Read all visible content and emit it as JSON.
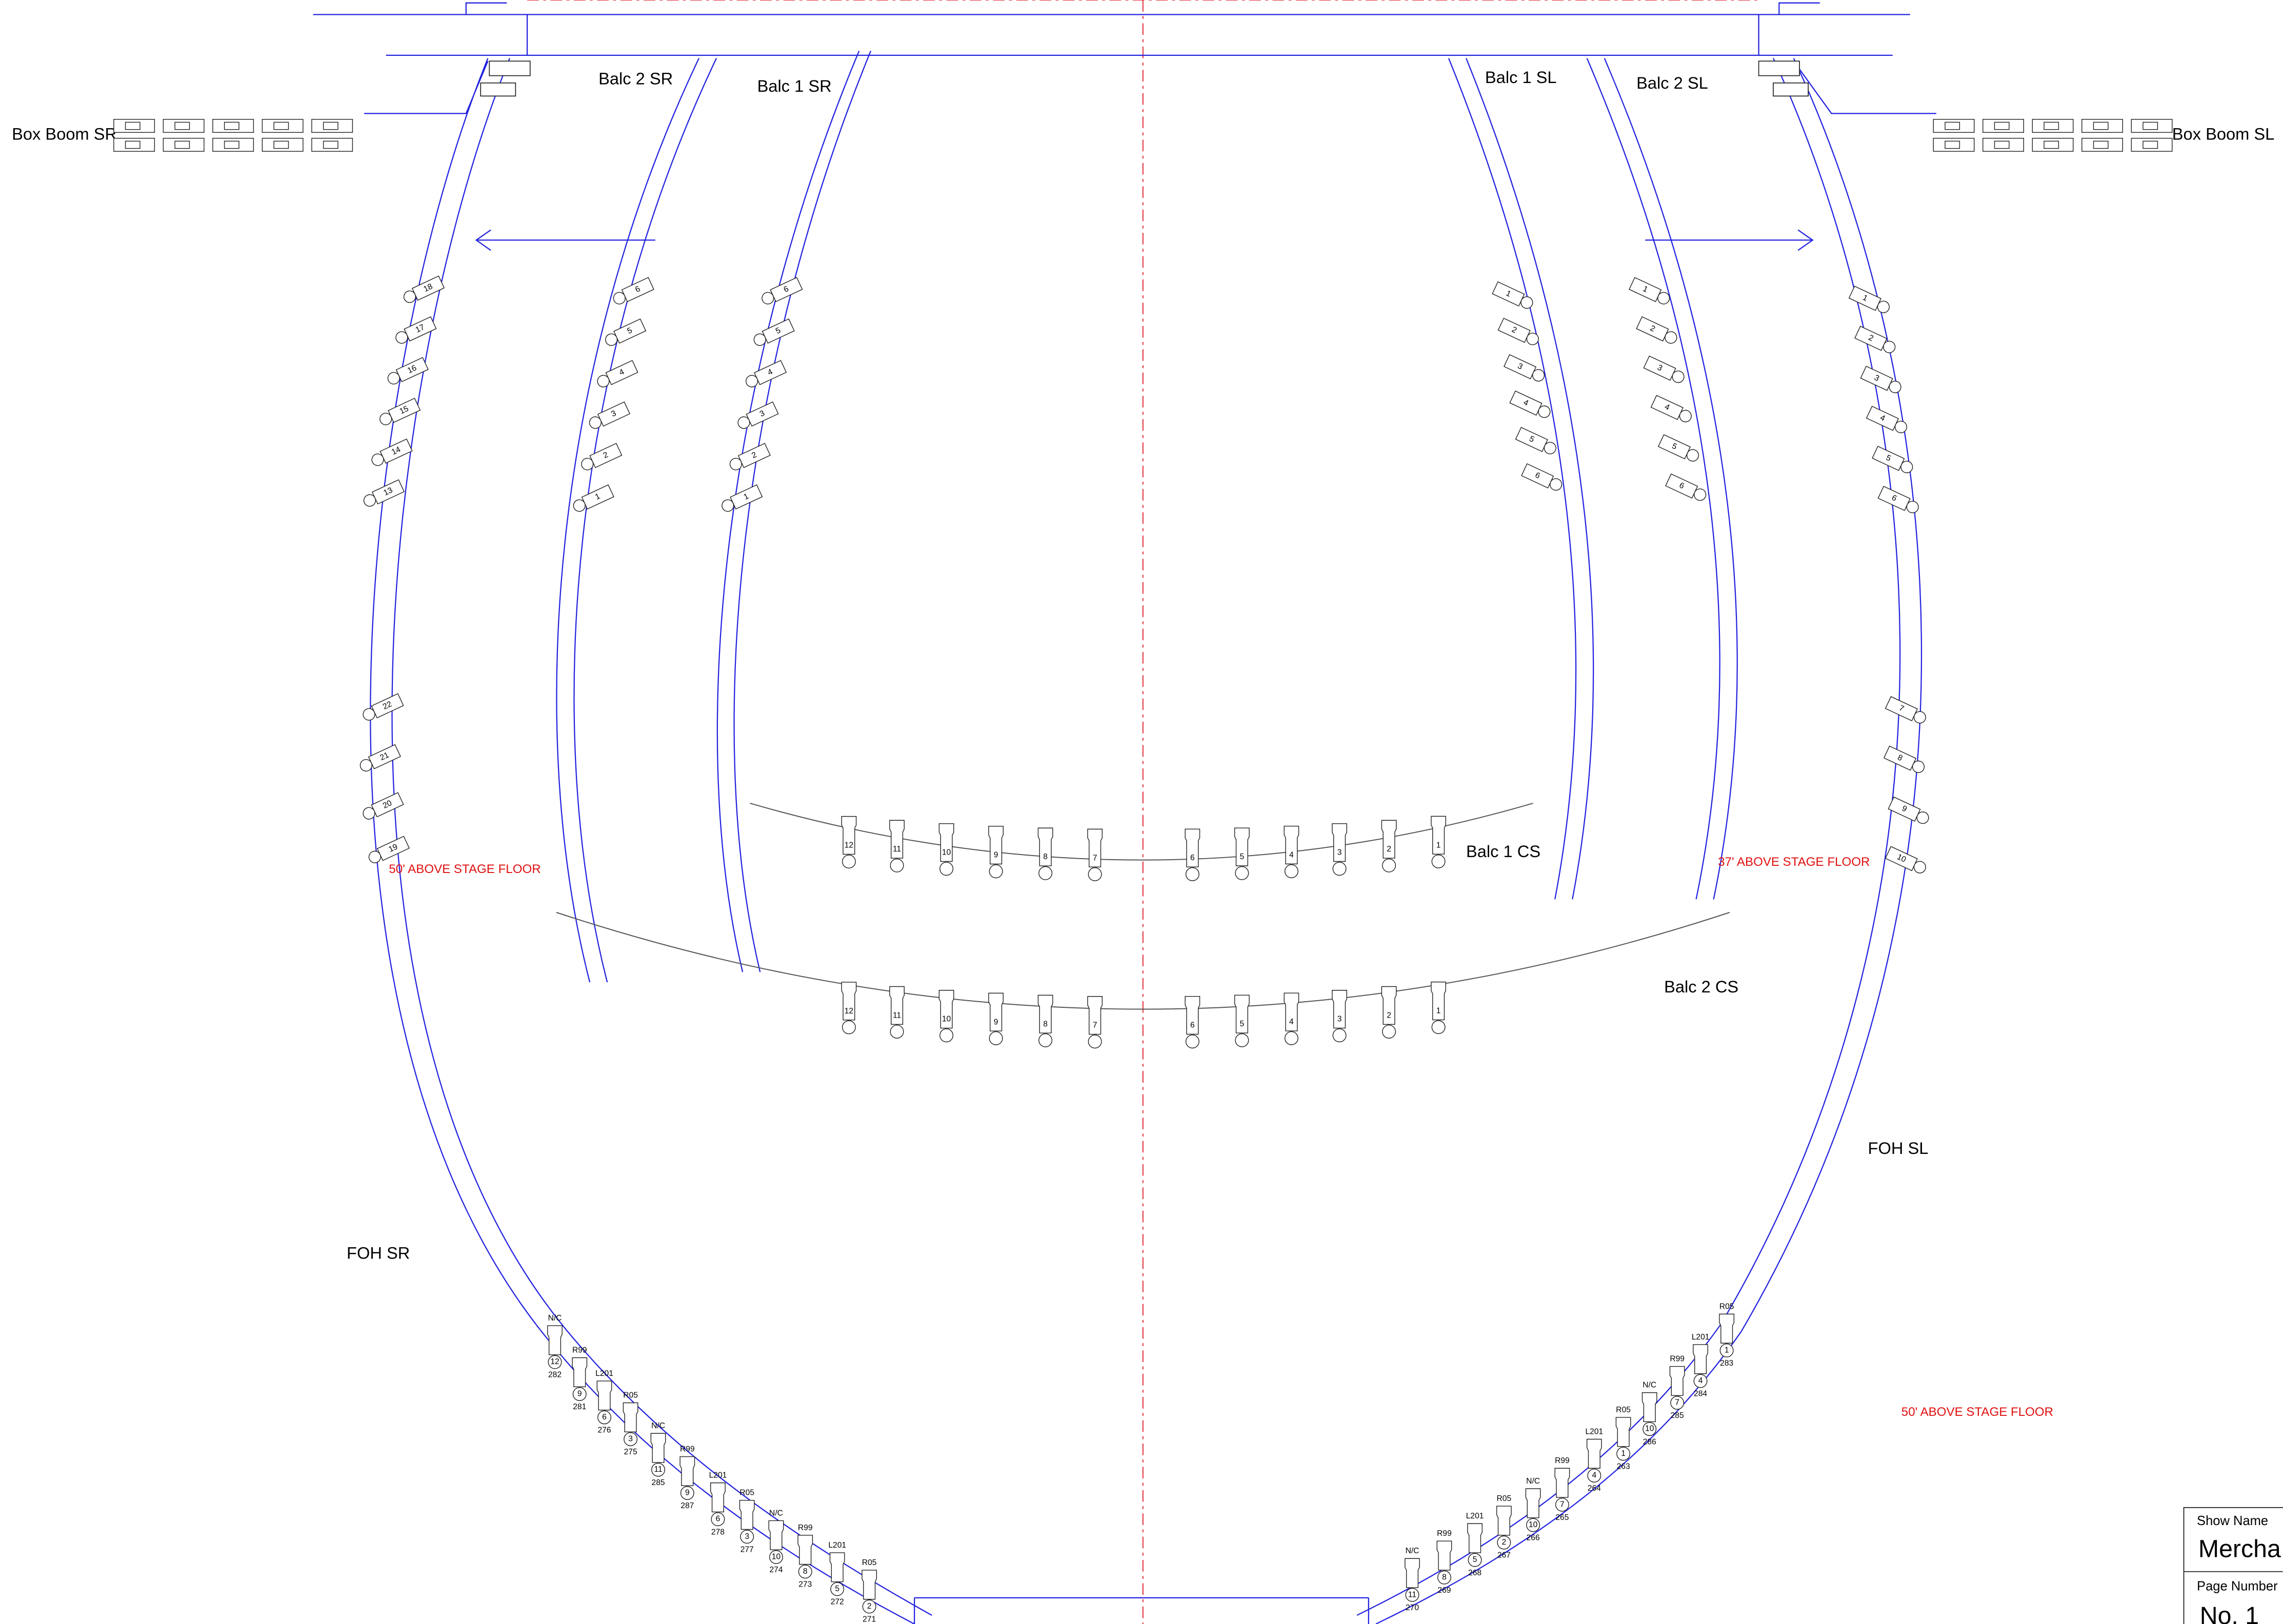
{
  "title_block": {
    "show_name_label": "Show Name",
    "show_name": "Mercha",
    "page_number_label": "Page Number",
    "page_number": "No. 1"
  },
  "positions": [
    {
      "label": "Box Boom SR"
    },
    {
      "label": "Box Boom SL"
    },
    {
      "label": "Balc 2 SR",
      "units": [
        "6",
        "5",
        "4",
        "3",
        "2",
        "1"
      ]
    },
    {
      "label": "Balc 1 SR",
      "units": [
        "6",
        "5",
        "4",
        "3",
        "2",
        "1"
      ]
    },
    {
      "label": "Balc 1 SL",
      "units": [
        "1",
        "2",
        "3",
        "4",
        "5",
        "6"
      ]
    },
    {
      "label": "Balc 2 SL",
      "units": [
        "1",
        "2",
        "3",
        "4",
        "5",
        "6"
      ]
    },
    {
      "label": "Balc 1 CS",
      "units": [
        "12",
        "11",
        "10",
        "9",
        "8",
        "7",
        "6",
        "5",
        "4",
        "3",
        "2",
        "1"
      ]
    },
    {
      "label": "Balc 2 CS",
      "units": [
        "12",
        "11",
        "10",
        "9",
        "8",
        "7",
        "6",
        "5",
        "4",
        "3",
        "2",
        "1"
      ]
    },
    {
      "label": "FOH SR",
      "upper_units": [
        "18",
        "17",
        "16",
        "15",
        "14",
        "13"
      ],
      "lower_units": [
        "22",
        "21",
        "20",
        "19"
      ],
      "units": [
        {
          "gel": "N/C",
          "unit": "12",
          "circuit": "282"
        },
        {
          "gel": "R99",
          "unit": "9",
          "circuit": "281"
        },
        {
          "gel": "L201",
          "unit": "6",
          "circuit": "276"
        },
        {
          "gel": "R05",
          "unit": "3",
          "circuit": "275"
        },
        {
          "gel": "N/C",
          "unit": "11",
          "circuit": "285"
        },
        {
          "gel": "R99",
          "unit": "9",
          "circuit": "287"
        },
        {
          "gel": "L201",
          "unit": "6",
          "circuit": "278"
        },
        {
          "gel": "R05",
          "unit": "3",
          "circuit": "277"
        },
        {
          "gel": "N/C",
          "unit": "10",
          "circuit": "274"
        },
        {
          "gel": "R99",
          "unit": "8",
          "circuit": "273"
        },
        {
          "gel": "L201",
          "unit": "5",
          "circuit": "272"
        },
        {
          "gel": "R05",
          "unit": "2",
          "circuit": "271"
        }
      ]
    },
    {
      "label": "FOH SL",
      "upper_units": [
        "1",
        "2",
        "3",
        "4",
        "5",
        "6"
      ],
      "lower_units": [
        "7",
        "8",
        "9",
        "10"
      ],
      "units": [
        {
          "gel": "R05",
          "unit": "1",
          "circuit": "283"
        },
        {
          "gel": "L201",
          "unit": "4",
          "circuit": "284"
        },
        {
          "gel": "R99",
          "unit": "7",
          "circuit": "285"
        },
        {
          "gel": "N/C",
          "unit": "10",
          "circuit": "286"
        },
        {
          "gel": "R05",
          "unit": "1",
          "circuit": "263"
        },
        {
          "gel": "L201",
          "unit": "4",
          "circuit": "264"
        },
        {
          "gel": "R99",
          "unit": "7",
          "circuit": "265"
        },
        {
          "gel": "N/C",
          "unit": "10",
          "circuit": "266"
        },
        {
          "gel": "R05",
          "unit": "2",
          "circuit": "267"
        },
        {
          "gel": "L201",
          "unit": "5",
          "circuit": "268"
        },
        {
          "gel": "R99",
          "unit": "8",
          "circuit": "269"
        },
        {
          "gel": "N/C",
          "unit": "11",
          "circuit": "270"
        }
      ]
    }
  ],
  "notes": [
    "50' ABOVE STAGE FLOOR",
    "37' ABOVE STAGE FLOOR",
    "50' ABOVE STAGE FLOOR"
  ]
}
